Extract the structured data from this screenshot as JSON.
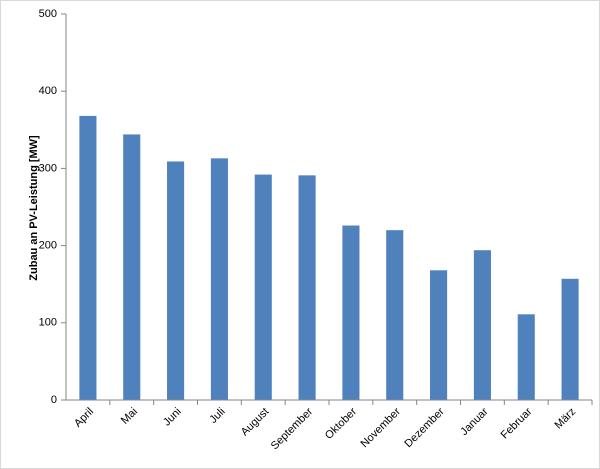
{
  "chart_data": {
    "type": "bar",
    "y_label": "Zubau an PV-Leistung [MW]",
    "categories": [
      "April",
      "Mai",
      "Juni",
      "Juli",
      "August",
      "September",
      "Oktober",
      "November",
      "Dezember",
      "Januar",
      "Februar",
      "März"
    ],
    "values": [
      368,
      344,
      309,
      313,
      292,
      291,
      226,
      220,
      168,
      194,
      111,
      157
    ],
    "color": "#4f81bd",
    "ylim": [
      0,
      500
    ],
    "yticks": [
      0,
      100,
      200,
      300,
      400,
      500
    ],
    "grid": false
  }
}
